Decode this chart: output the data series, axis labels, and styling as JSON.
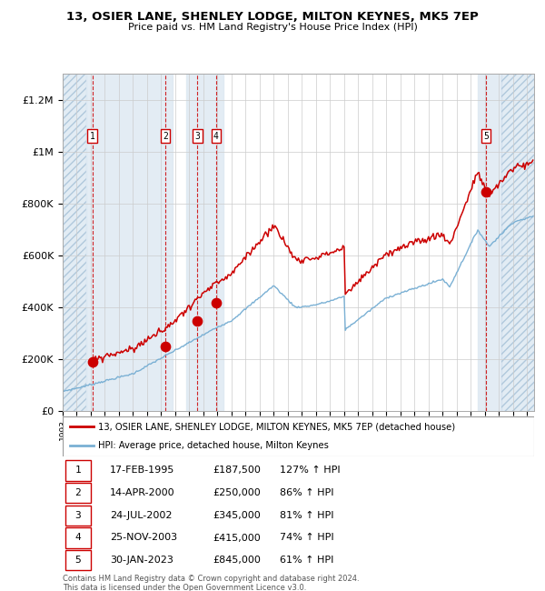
{
  "title": "13, OSIER LANE, SHENLEY LODGE, MILTON KEYNES, MK5 7EP",
  "subtitle": "Price paid vs. HM Land Registry's House Price Index (HPI)",
  "xlim_left": 1993,
  "xlim_right": 2026.5,
  "ylim_bottom": 0,
  "ylim_top": 1300000,
  "yticks": [
    0,
    200000,
    400000,
    600000,
    800000,
    1000000,
    1200000
  ],
  "ytick_labels": [
    "£0",
    "£200K",
    "£400K",
    "£600K",
    "£800K",
    "£1M",
    "£1.2M"
  ],
  "sale_dates": [
    1995.12,
    2000.29,
    2002.57,
    2003.9,
    2023.08
  ],
  "sale_prices": [
    187500,
    250000,
    345000,
    415000,
    845000
  ],
  "sale_labels": [
    "1",
    "2",
    "3",
    "4",
    "5"
  ],
  "sale_info": [
    {
      "num": 1,
      "date": "17-FEB-1995",
      "price": "£187,500",
      "hpi": "127% ↑ HPI"
    },
    {
      "num": 2,
      "date": "14-APR-2000",
      "price": "£250,000",
      "hpi": "86% ↑ HPI"
    },
    {
      "num": 3,
      "date": "24-JUL-2002",
      "price": "£345,000",
      "hpi": "81% ↑ HPI"
    },
    {
      "num": 4,
      "date": "25-NOV-2003",
      "price": "£415,000",
      "hpi": "74% ↑ HPI"
    },
    {
      "num": 5,
      "date": "30-JAN-2023",
      "price": "£845,000",
      "hpi": "61% ↑ HPI"
    }
  ],
  "hpi_color": "#7ab0d4",
  "price_color": "#cc0000",
  "legend_line1": "13, OSIER LANE, SHENLEY LODGE, MILTON KEYNES, MK5 7EP (detached house)",
  "legend_line2": "HPI: Average price, detached house, Milton Keynes",
  "footnote": "Contains HM Land Registry data © Crown copyright and database right 2024.\nThis data is licensed under the Open Government Licence v3.0."
}
